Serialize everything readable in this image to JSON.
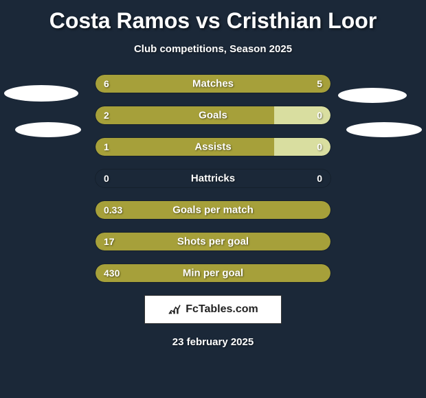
{
  "title": "Costa Ramos vs Cristhian Loor",
  "subtitle": "Club competitions, Season 2025",
  "date": "23 february 2025",
  "logo_text": "FcTables.com",
  "background_color": "#1b2838",
  "colors": {
    "player1_bar": "#a6a03a",
    "player2_bar_matches": "#a6a03a",
    "player2_bar_accent": "#b8b54e"
  },
  "stats": [
    {
      "label": "Matches",
      "left_value": "6",
      "right_value": "5",
      "left_width_pct": 54.5,
      "right_width_pct": 45.5,
      "left_color": "#a6a03a",
      "right_color": "#a6a03a",
      "full": false
    },
    {
      "label": "Goals",
      "left_value": "2",
      "right_value": "0",
      "left_width_pct": 76,
      "right_width_pct": 24,
      "left_color": "#a6a03a",
      "right_color": "#d9dea0",
      "full": false
    },
    {
      "label": "Assists",
      "left_value": "1",
      "right_value": "0",
      "left_width_pct": 76,
      "right_width_pct": 24,
      "left_color": "#a6a03a",
      "right_color": "#d9dea0",
      "full": false
    },
    {
      "label": "Hattricks",
      "left_value": "0",
      "right_value": "0",
      "left_width_pct": 0,
      "right_width_pct": 0,
      "left_color": "#1b2838",
      "right_color": "#1b2838",
      "full": false
    },
    {
      "label": "Goals per match",
      "left_value": "0.33",
      "right_value": "",
      "left_width_pct": 100,
      "right_width_pct": 0,
      "left_color": "#a6a03a",
      "right_color": "#a6a03a",
      "full": true
    },
    {
      "label": "Shots per goal",
      "left_value": "17",
      "right_value": "",
      "left_width_pct": 100,
      "right_width_pct": 0,
      "left_color": "#a6a03a",
      "right_color": "#a6a03a",
      "full": true
    },
    {
      "label": "Min per goal",
      "left_value": "430",
      "right_value": "",
      "left_width_pct": 100,
      "right_width_pct": 0,
      "left_color": "#a6a03a",
      "right_color": "#a6a03a",
      "full": true
    }
  ]
}
